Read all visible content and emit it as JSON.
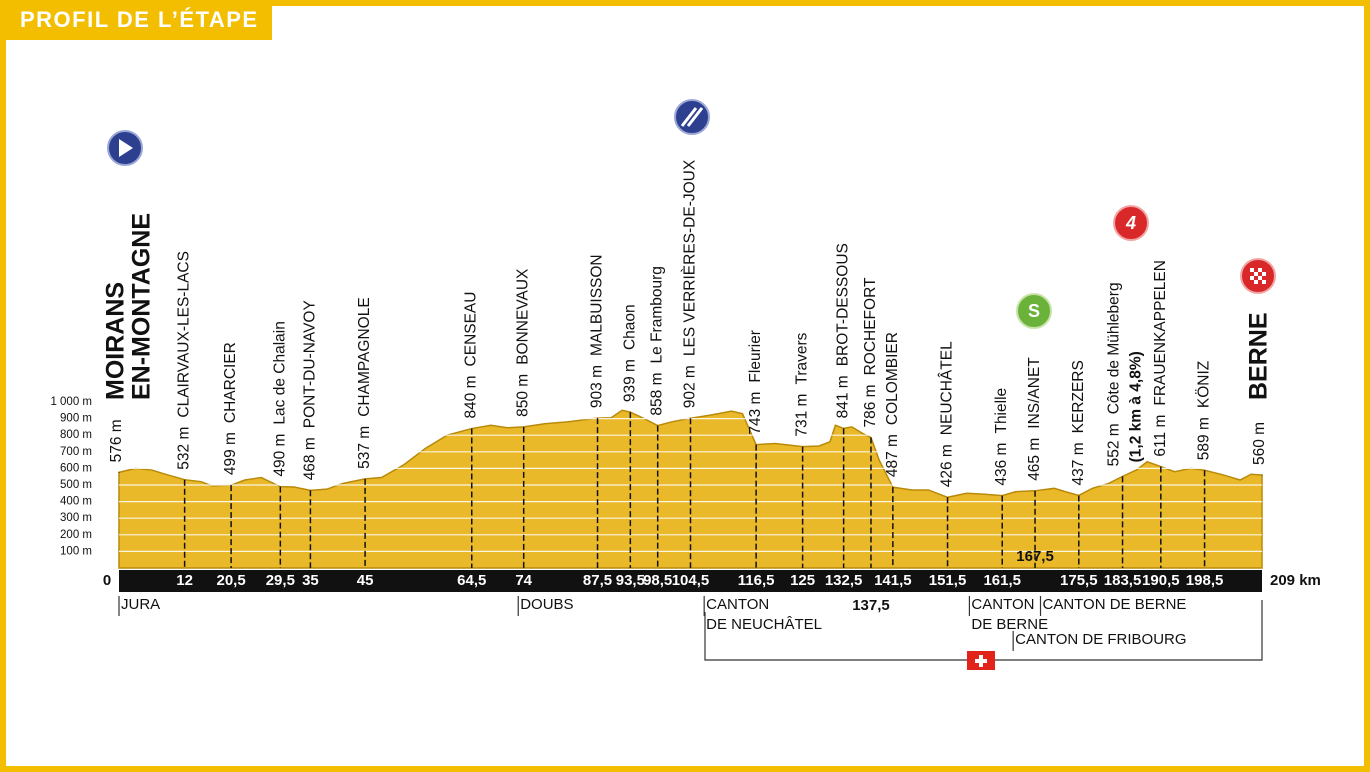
{
  "chart_data": {
    "type": "area",
    "title": "PROFIL DE L’ÉTAPE",
    "x": [
      0,
      3,
      6,
      9,
      12,
      15,
      17,
      20.5,
      23,
      26,
      29.5,
      32,
      35,
      38,
      41,
      45,
      48,
      52,
      56,
      60,
      64.5,
      68,
      71,
      74,
      78,
      82,
      87.5,
      90,
      92,
      93.5,
      96,
      98.5,
      101,
      104.5,
      108,
      112,
      114,
      116.5,
      120,
      125,
      128,
      130,
      131,
      132.5,
      134,
      136,
      137.5,
      139,
      141.5,
      145,
      148,
      151.5,
      155,
      158,
      161.5,
      164,
      167.5,
      171,
      173,
      175.5,
      178,
      181,
      183.5,
      186,
      188,
      190.5,
      193,
      196,
      198.5,
      202,
      205,
      207,
      209
    ],
    "values": [
      576,
      600,
      590,
      560,
      532,
      520,
      495,
      499,
      530,
      545,
      490,
      488,
      468,
      475,
      510,
      537,
      545,
      620,
      720,
      800,
      840,
      860,
      845,
      850,
      870,
      880,
      903,
      905,
      950,
      939,
      900,
      858,
      880,
      902,
      920,
      945,
      930,
      743,
      750,
      731,
      735,
      760,
      860,
      841,
      850,
      810,
      786,
      650,
      487,
      470,
      470,
      426,
      450,
      445,
      436,
      460,
      465,
      480,
      460,
      437,
      480,
      510,
      552,
      590,
      640,
      611,
      580,
      600,
      589,
      560,
      530,
      565,
      560
    ],
    "color": "#eab92a",
    "xlim": [
      0,
      209
    ],
    "ylim": [
      0,
      1000
    ],
    "yticks": [
      {
        "value": 100,
        "label": "100 m"
      },
      {
        "value": 200,
        "label": "200 m"
      },
      {
        "value": 300,
        "label": "300 m"
      },
      {
        "value": 400,
        "label": "400 m"
      },
      {
        "value": 500,
        "label": "500 m"
      },
      {
        "value": 600,
        "label": "600 m"
      },
      {
        "value": 700,
        "label": "700 m"
      },
      {
        "value": 800,
        "label": "800 m"
      },
      {
        "value": 900,
        "label": "900 m"
      },
      {
        "value": 1000,
        "label": "1 000 m"
      }
    ],
    "grid": true,
    "waypoints": [
      {
        "km": 0,
        "altitude": 576,
        "altitude_label": "576 m",
        "name": [
          "MOIRANS",
          "EN-MONTAGNE"
        ]
      },
      {
        "km": 12,
        "altitude": 532,
        "altitude_label": "532 m",
        "name": "CLAIRVAUX-LES-LACS"
      },
      {
        "km": {
          "value": 20.5,
          "label": "20,5"
        },
        "altitude": 499,
        "altitude_label": "499 m",
        "name": "CHARCIER"
      },
      {
        "km": {
          "value": 29.5,
          "label": "29,5"
        },
        "altitude": 490,
        "altitude_label": "490 m",
        "name": "Lac de Chalain"
      },
      {
        "km": 35,
        "altitude": 468,
        "altitude_label": "468 m",
        "name": "PONT-DU-NAVOY"
      },
      {
        "km": 45,
        "altitude": 537,
        "altitude_label": "537 m",
        "name": "CHAMPAGNOLE"
      },
      {
        "km": {
          "value": 64.5,
          "label": "64,5"
        },
        "altitude": 840,
        "altitude_label": "840 m",
        "name": "CENSEAU"
      },
      {
        "km": 74,
        "altitude": 850,
        "altitude_label": "850 m",
        "name": "BONNEVAUX"
      },
      {
        "km": {
          "value": 87.5,
          "label": "87,5"
        },
        "altitude": 903,
        "altitude_label": "903 m",
        "name": "MALBUISSON"
      },
      {
        "km": {
          "value": 93.5,
          "label": "93,5"
        },
        "altitude": 939,
        "altitude_label": "939 m",
        "name": "Chaon"
      },
      {
        "km": {
          "value": 98.5,
          "label": "98,5"
        },
        "altitude": 858,
        "altitude_label": "858 m",
        "name": "Le Frambourg"
      },
      {
        "km": {
          "value": 104.5,
          "label": "104,5"
        },
        "altitude": 902,
        "altitude_label": "902 m",
        "name": "LES VERRIÈRES-DE-JOUX"
      },
      {
        "km": {
          "value": 116.5,
          "label": "116,5"
        },
        "altitude": 743,
        "altitude_label": "743 m",
        "name": "Fleurier"
      },
      {
        "km": 125,
        "altitude": 731,
        "altitude_label": "731 m",
        "name": "Travers"
      },
      {
        "km": {
          "value": 132.5,
          "label": "132,5"
        },
        "altitude": 841,
        "altitude_label": "841 m",
        "name": "BROT-DESSOUS"
      },
      {
        "km": {
          "value": 137.5,
          "label": "137,5"
        },
        "altitude": 786,
        "altitude_label": "786 m",
        "name": "ROCHEFORT"
      },
      {
        "km": {
          "value": 141.5,
          "label": "141,5"
        },
        "altitude": 487,
        "altitude_label": "487 m",
        "name": "COLOMBIER"
      },
      {
        "km": {
          "value": 151.5,
          "label": "151,5"
        },
        "altitude": 426,
        "altitude_label": "426 m",
        "name": "NEUCHÂTEL"
      },
      {
        "km": {
          "value": 161.5,
          "label": "161,5"
        },
        "altitude": 436,
        "altitude_label": "436 m",
        "name": "Thielle"
      },
      {
        "km": {
          "value": 167.5,
          "label": "167,5"
        },
        "altitude": 465,
        "altitude_label": "465 m",
        "name": "INS/ANET",
        "sprint": "S"
      },
      {
        "km": {
          "value": 175.5,
          "label": "175,5"
        },
        "altitude": 437,
        "altitude_label": "437 m",
        "name": "KERZERS"
      },
      {
        "km": {
          "value": 183.5,
          "label": "183,5"
        },
        "altitude": 552,
        "altitude_label": "552 m",
        "name": "Côte de Mühleberg",
        "climb": {
          "category": "4",
          "detail": "(1,2 km à 4,8%)"
        }
      },
      {
        "km": {
          "value": 190.5,
          "label": "190,5"
        },
        "altitude": 611,
        "altitude_label": "611 m",
        "name": "FRAUENKAPPELEN"
      },
      {
        "km": {
          "value": 198.5,
          "label": "198,5"
        },
        "altitude": 589,
        "altitude_label": "589 m",
        "name": "KÖNIZ"
      },
      {
        "km": {
          "value": 209,
          "label": "209 km"
        },
        "altitude": 560,
        "altitude_label": "560 m",
        "name": "BERNE"
      }
    ],
    "regions": [
      {
        "km": 0,
        "lines": [
          "JURA"
        ]
      },
      {
        "km": 73,
        "lines": [
          "DOUBS"
        ]
      },
      {
        "km": 107,
        "lines": [
          "CANTON",
          "DE NEUCHÂTEL"
        ]
      },
      {
        "km": 155.5,
        "lines": [
          "CANTON",
          "DE BERNE"
        ]
      },
      {
        "km": 163.5,
        "lines": [
          "CANTON DE FRIBOURG"
        ]
      },
      {
        "km": 168.5,
        "lines": [
          "CANTON DE BERNE"
        ]
      }
    ]
  }
}
